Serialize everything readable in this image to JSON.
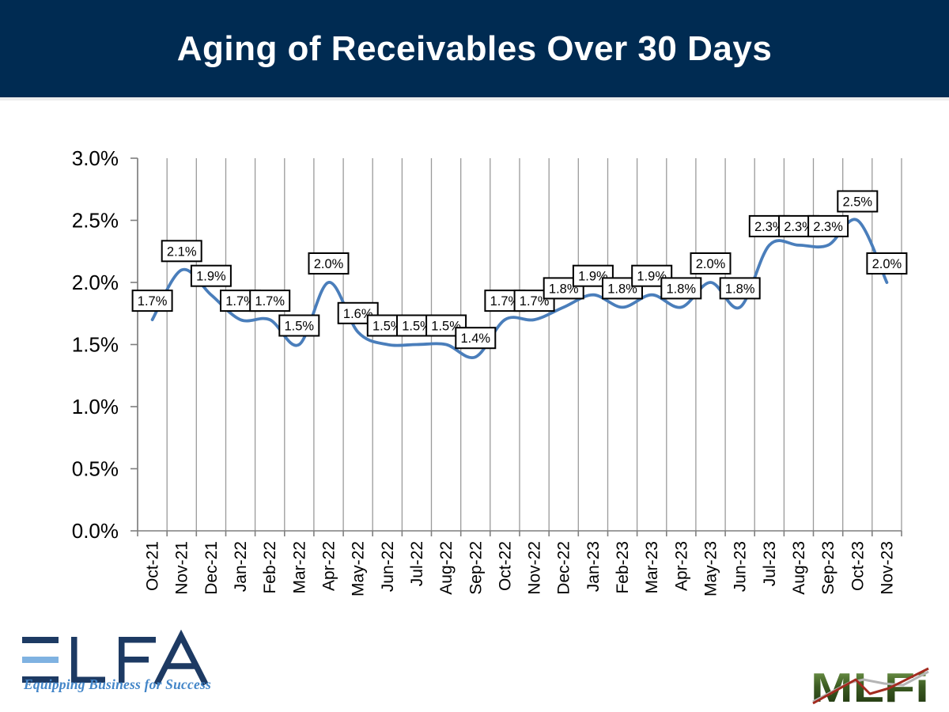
{
  "header": {
    "title": "Aging of Receivables Over 30 Days"
  },
  "chart_data": {
    "type": "line",
    "title": "Aging of Receivables Over 30 Days",
    "xlabel": "",
    "ylabel": "",
    "categories": [
      "Oct-21",
      "Nov-21",
      "Dec-21",
      "Jan-22",
      "Feb-22",
      "Mar-22",
      "Apr-22",
      "May-22",
      "Jun-22",
      "Jul-22",
      "Aug-22",
      "Sep-22",
      "Oct-22",
      "Nov-22",
      "Dec-22",
      "Jan-23",
      "Feb-23",
      "Mar-23",
      "Apr-23",
      "May-23",
      "Jun-23",
      "Jul-23",
      "Aug-23",
      "Sep-23",
      "Oct-23",
      "Nov-23"
    ],
    "values": [
      1.7,
      2.1,
      1.9,
      1.7,
      1.7,
      1.5,
      2.0,
      1.6,
      1.5,
      1.5,
      1.5,
      1.4,
      1.7,
      1.7,
      1.8,
      1.9,
      1.8,
      1.9,
      1.8,
      2.0,
      1.8,
      2.3,
      2.3,
      2.3,
      2.5,
      2.0
    ],
    "labels": [
      "1.7%",
      "2.1%",
      "1.9%",
      "1.7%",
      "1.7%",
      "1.5%",
      "2.0%",
      "1.6%",
      "1.5%",
      "1.5%",
      "1.5%",
      "1.4%",
      "1.7%",
      "1.7%",
      "1.8%",
      "1.9%",
      "1.8%",
      "1.9%",
      "1.8%",
      "2.0%",
      "1.8%",
      "2.3%",
      "2.3%",
      "2.3%",
      "2.5%",
      "2.0%"
    ],
    "y_ticks": [
      "0.0%",
      "0.5%",
      "1.0%",
      "1.5%",
      "2.0%",
      "2.5%",
      "3.0%"
    ],
    "ylim": [
      0,
      3
    ],
    "grid": "vertical-only",
    "legend": "none",
    "smooth": true,
    "data_label_style": "boxed-above-point"
  },
  "colors": {
    "banner_navy": "#002b52",
    "title_text": "#ffffff",
    "line_blue": "#4a7ebb",
    "gridline_gray": "#9a9a9a",
    "axis_gray": "#7f7f7f",
    "label_box_fill": "#ffffff",
    "label_box_border": "#000000",
    "elfa_navy": "#1d3a63",
    "elfa_lightblue": "#7fb2e1",
    "elfa_tagline_blue": "#4285c8",
    "mlfi_green_dark": "#1c2f0d",
    "mlfi_green_mid": "#3c5c22",
    "mlfi_green_light": "#7da454",
    "mlfi_red": "#a32b20",
    "mlfi_gray": "#b5b5b5"
  },
  "footer": {
    "elfa": {
      "letters": "ELFA",
      "tagline": "Equipping Business for Success"
    },
    "mlfi": {
      "text": "MLFi"
    }
  }
}
